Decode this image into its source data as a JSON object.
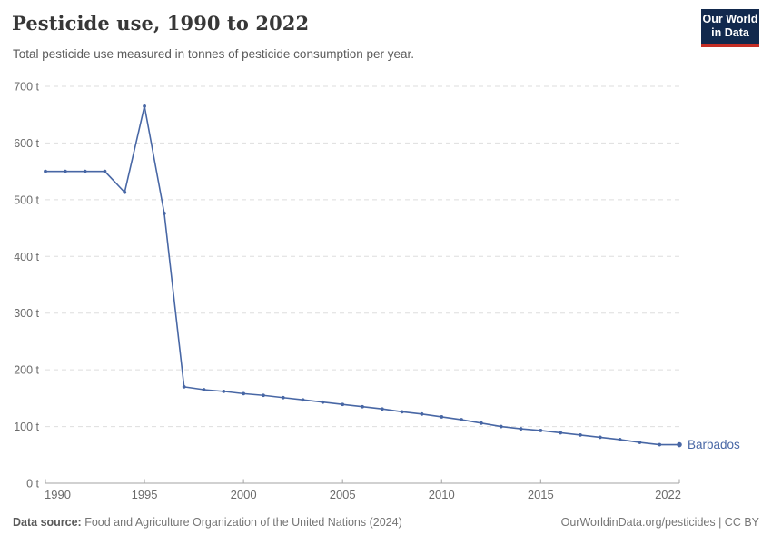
{
  "header": {
    "title": "Pesticide use, 1990 to 2022",
    "subtitle": "Total pesticide use measured in tonnes of pesticide consumption per year.",
    "logo": {
      "line1": "Our World",
      "line2": "in Data",
      "bg_color": "#12294d",
      "accent_color": "#c52e25"
    }
  },
  "chart_data": {
    "type": "line",
    "title": "Pesticide use, 1990 to 2022",
    "xlabel": "",
    "ylabel": "",
    "xlim": [
      1990,
      2022
    ],
    "ylim": [
      0,
      700
    ],
    "grid": "horizontal-dashed",
    "legend_position": "end-of-line-label",
    "x_ticks": [
      1990,
      1995,
      2000,
      2005,
      2010,
      2015,
      2022
    ],
    "y_ticks": [
      0,
      100,
      200,
      300,
      400,
      500,
      600,
      700
    ],
    "y_tick_suffix": " t",
    "series": [
      {
        "name": "Barbados",
        "color": "#4867a5",
        "x": [
          1990,
          1991,
          1992,
          1993,
          1994,
          1995,
          1996,
          1997,
          1998,
          1999,
          2000,
          2001,
          2002,
          2003,
          2004,
          2005,
          2006,
          2007,
          2008,
          2009,
          2010,
          2011,
          2012,
          2013,
          2014,
          2015,
          2016,
          2017,
          2018,
          2019,
          2020,
          2021,
          2022
        ],
        "values": [
          550,
          550,
          550,
          550,
          513,
          665,
          476,
          170,
          165,
          162,
          158,
          155,
          151,
          147,
          143,
          139,
          135,
          131,
          126,
          122,
          117,
          112,
          106,
          100,
          96,
          93,
          89,
          85,
          81,
          77,
          72,
          68,
          68
        ]
      }
    ]
  },
  "footer": {
    "source_label": "Data source:",
    "source_text": "Food and Agriculture Organization of the United Nations (2024)",
    "link_text": "OurWorldinData.org/pesticides",
    "separator": " | ",
    "license_text": "CC BY"
  },
  "colors": {
    "grid": "#dedede",
    "axis": "#a3a3a3",
    "tick_label": "#6b6b6b",
    "line": "#4867a5"
  }
}
